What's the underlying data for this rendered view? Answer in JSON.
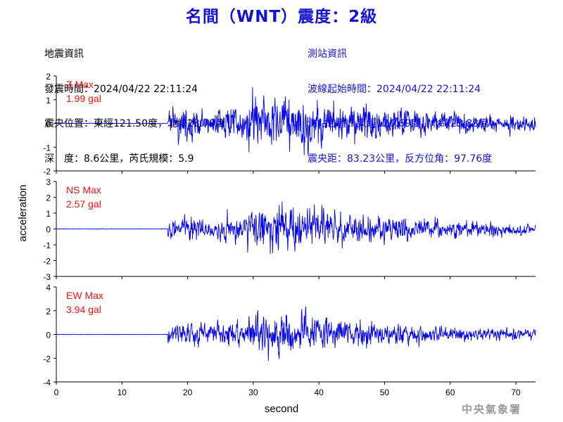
{
  "title": "名間（WNT）震度：2級",
  "earthquake_info": {
    "heading": "地震資訊",
    "origin_time": "發震時間：2024/04/22 22:11:24",
    "epicenter": "震央位置：東經121.50度，北緯23.78度",
    "depth_magnitude": "深　度：8.6公里，芮氏規模：5.9"
  },
  "station_info": {
    "heading": "測站資訊",
    "wave_start": "波線起始時間：2024/04/22 22:11:24",
    "station_location": "測站位置：東經120.69度，北緯23.88度",
    "distance_azimuth": "震央距：83.23公里，反方位角：97.76度"
  },
  "watermark": "中央氣象署",
  "colors": {
    "trace": "#0000ee",
    "title": "#1414d0",
    "max_label": "#ee1111"
  },
  "chart_data": {
    "type": "line",
    "xlabel": "second",
    "ylabel": "acceleration",
    "xlim": [
      0,
      73
    ],
    "xticks": [
      0,
      10,
      20,
      30,
      40,
      50,
      60,
      70
    ],
    "panels": [
      {
        "name": "Z",
        "max_label": "Z Max",
        "max_value": "1.99 gal",
        "max": 1.99,
        "ylim": [
          -2,
          2
        ],
        "yticks": [
          -2,
          -1,
          0,
          1,
          2
        ],
        "onset": 17.0,
        "scale": 0.56
      },
      {
        "name": "NS",
        "max_label": "NS Max",
        "max_value": "2.57 gal",
        "max": 2.57,
        "ylim": [
          -3,
          3
        ],
        "yticks": [
          -3,
          -2,
          -1,
          0,
          1,
          2,
          3
        ],
        "onset": 17.0,
        "scale": 0.44
      },
      {
        "name": "EW",
        "max_label": "EW Max",
        "max_value": "3.94 gal",
        "max": 3.94,
        "ylim": [
          -4,
          4
        ],
        "yticks": [
          -4,
          -2,
          0,
          2,
          4
        ],
        "onset": 17.0,
        "scale": 0.4
      }
    ]
  }
}
